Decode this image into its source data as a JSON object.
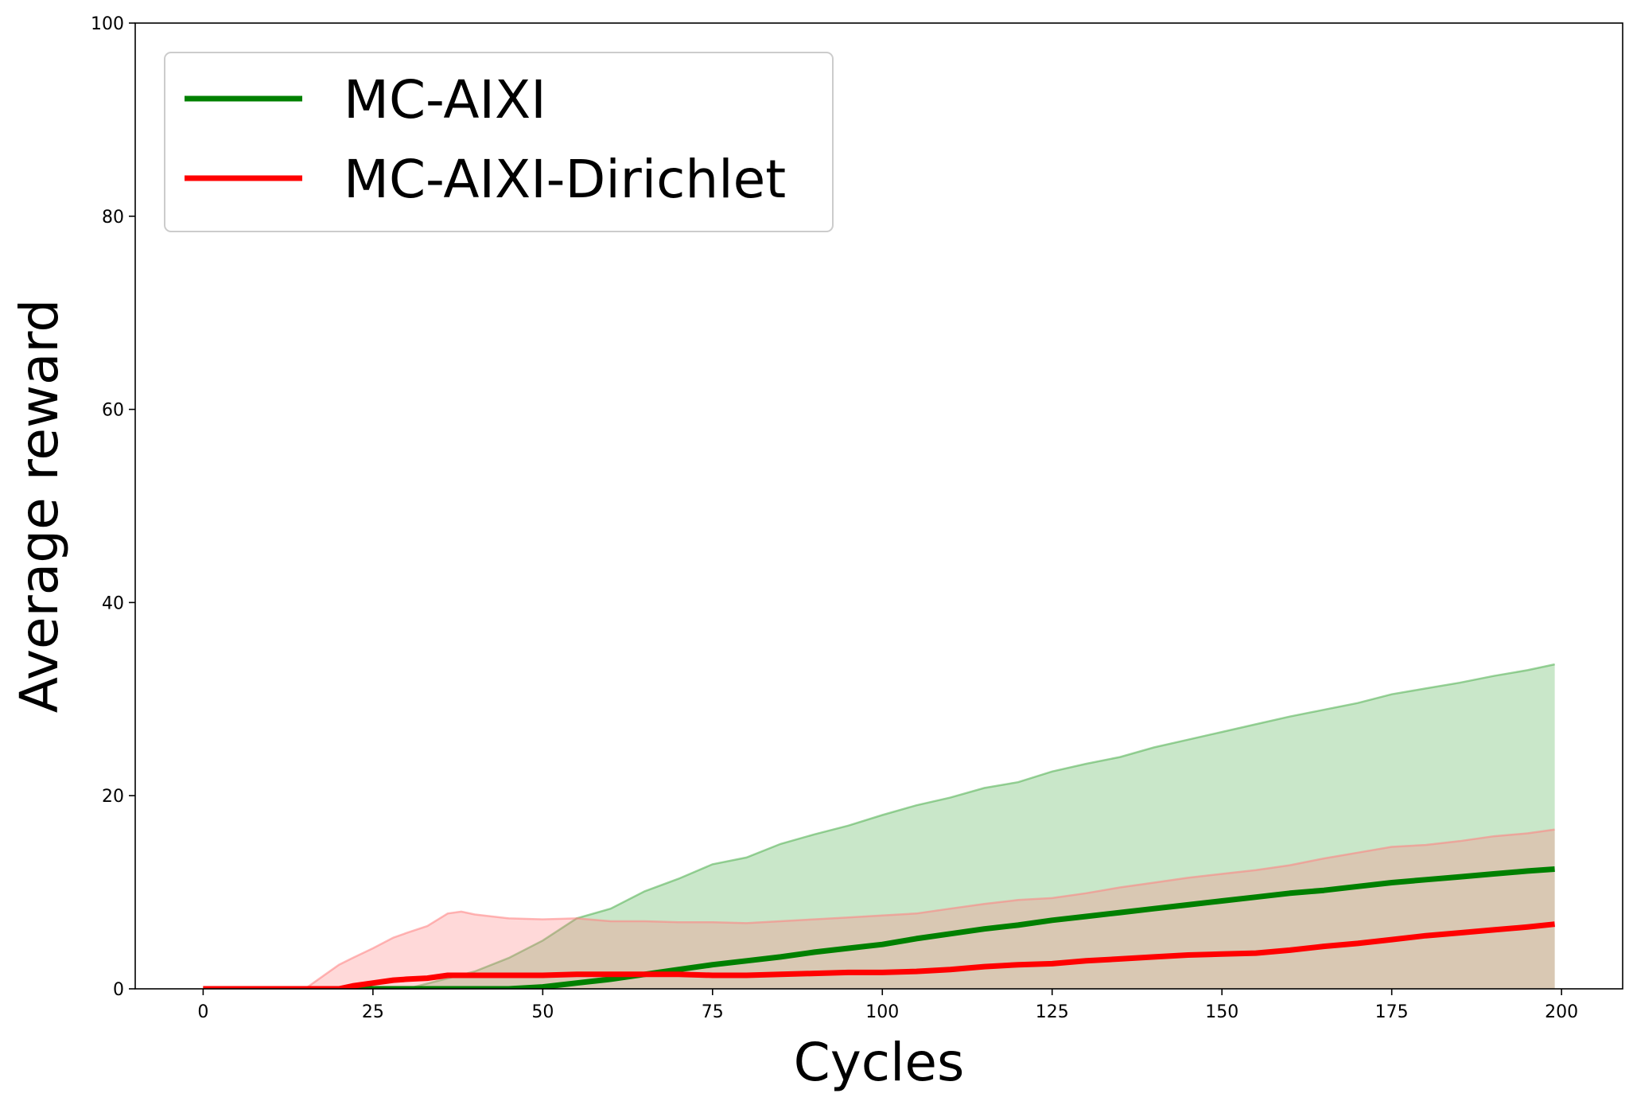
{
  "chart_data": {
    "type": "line",
    "title": "",
    "xlabel": "Cycles",
    "ylabel": "Average reward",
    "xlim": [
      -10,
      209
    ],
    "ylim": [
      0,
      100
    ],
    "xticks": [
      0,
      25,
      50,
      75,
      100,
      125,
      150,
      175,
      200
    ],
    "yticks": [
      0,
      20,
      40,
      60,
      80,
      100
    ],
    "grid": false,
    "legend": "upper-left",
    "series": [
      {
        "name": "MC-AIXI",
        "color": "#008000",
        "band_color": "#4cae4c",
        "x": [
          0,
          20,
          30,
          40,
          45,
          50,
          55,
          60,
          65,
          70,
          75,
          80,
          85,
          90,
          95,
          100,
          105,
          110,
          115,
          120,
          125,
          130,
          135,
          140,
          145,
          150,
          155,
          160,
          165,
          170,
          175,
          180,
          185,
          190,
          195,
          199
        ],
        "y": [
          0,
          0,
          0,
          0,
          0,
          0.2,
          0.6,
          1.0,
          1.5,
          2.0,
          2.5,
          2.9,
          3.3,
          3.8,
          4.2,
          4.6,
          5.2,
          5.7,
          6.2,
          6.6,
          7.1,
          7.5,
          7.9,
          8.3,
          8.7,
          9.1,
          9.5,
          9.9,
          10.2,
          10.6,
          11.0,
          11.3,
          11.6,
          11.9,
          12.2,
          12.4
        ],
        "upper": [
          0,
          0,
          0,
          1.8,
          3.2,
          5.0,
          7.3,
          8.3,
          10.1,
          11.4,
          12.9,
          13.6,
          15.0,
          16.0,
          16.9,
          18.0,
          19.0,
          19.8,
          20.8,
          21.4,
          22.5,
          23.3,
          24.0,
          25.0,
          25.8,
          26.6,
          27.4,
          28.2,
          28.9,
          29.6,
          30.5,
          31.1,
          31.7,
          32.4,
          33.0,
          33.6
        ],
        "lower": [
          0,
          0,
          0,
          0,
          0,
          0,
          0,
          0,
          0,
          0,
          0,
          0,
          0,
          0,
          0,
          0,
          0,
          0,
          0,
          0,
          0,
          0,
          0,
          0,
          0,
          0,
          0,
          0,
          0,
          0,
          0,
          0,
          0,
          0,
          0,
          0
        ]
      },
      {
        "name": "MC-AIXI-Dirichlet",
        "color": "#ff0000",
        "band_color": "#ff8080",
        "x": [
          0,
          10,
          15,
          18,
          20,
          22,
          25,
          28,
          30,
          33,
          36,
          38,
          40,
          45,
          50,
          55,
          60,
          65,
          70,
          75,
          80,
          85,
          90,
          95,
          100,
          105,
          110,
          115,
          120,
          125,
          130,
          135,
          140,
          145,
          150,
          155,
          160,
          165,
          170,
          175,
          180,
          185,
          190,
          195,
          199
        ],
        "y": [
          0,
          0,
          0,
          0,
          0,
          0.3,
          0.6,
          0.9,
          1.0,
          1.1,
          1.4,
          1.4,
          1.4,
          1.4,
          1.4,
          1.5,
          1.5,
          1.5,
          1.5,
          1.4,
          1.4,
          1.5,
          1.6,
          1.7,
          1.7,
          1.8,
          2.0,
          2.3,
          2.5,
          2.6,
          2.9,
          3.1,
          3.3,
          3.5,
          3.6,
          3.7,
          4.0,
          4.4,
          4.7,
          5.1,
          5.5,
          5.8,
          6.1,
          6.4,
          6.7
        ],
        "upper": [
          0,
          0,
          0,
          1.5,
          2.5,
          3.2,
          4.2,
          5.3,
          5.8,
          6.5,
          7.8,
          8.0,
          7.7,
          7.3,
          7.2,
          7.3,
          7.0,
          7.0,
          6.9,
          6.9,
          6.8,
          7.0,
          7.2,
          7.4,
          7.6,
          7.8,
          8.3,
          8.8,
          9.2,
          9.4,
          9.9,
          10.5,
          11.0,
          11.5,
          11.9,
          12.3,
          12.8,
          13.5,
          14.1,
          14.7,
          14.9,
          15.3,
          15.8,
          16.1,
          16.5
        ],
        "lower": [
          0,
          0,
          0,
          0,
          0,
          0,
          0,
          0,
          0,
          0,
          0,
          0,
          0,
          0,
          0,
          0,
          0,
          0,
          0,
          0,
          0,
          0,
          0,
          0,
          0,
          0,
          0,
          0,
          0,
          0,
          0,
          0,
          0,
          0,
          0,
          0,
          0,
          0,
          0,
          0,
          0,
          0,
          0,
          0,
          0
        ]
      }
    ]
  }
}
